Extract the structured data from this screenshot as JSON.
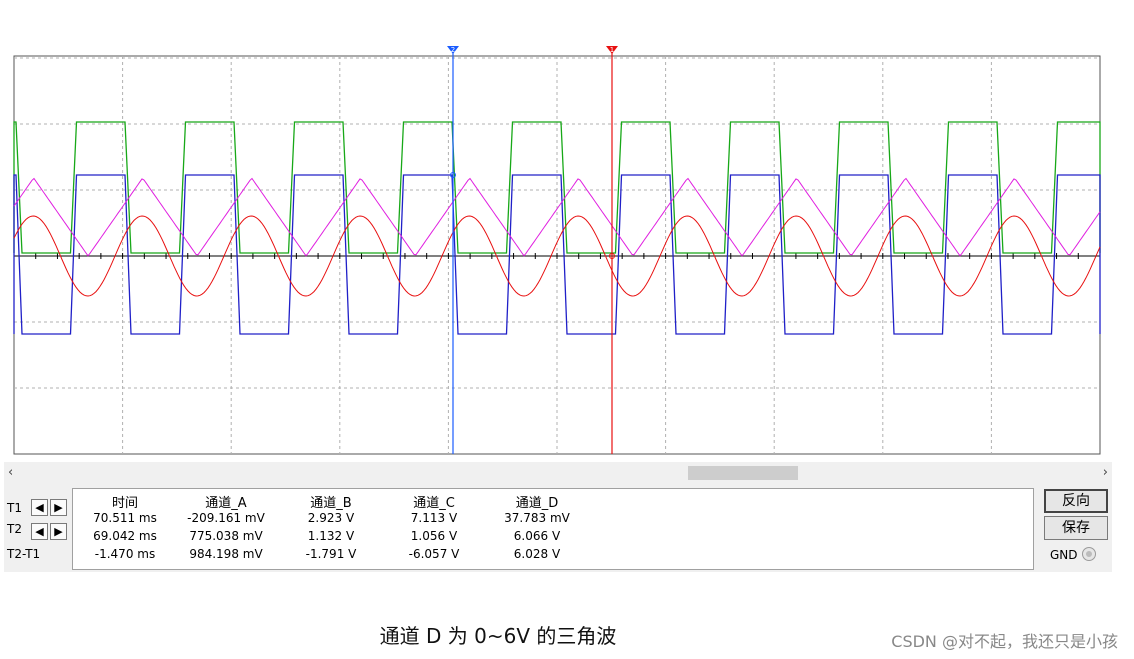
{
  "scope": {
    "trace_colors": {
      "A": "#e81010",
      "B": "#2020c8",
      "C": "#18a818",
      "D": "#e020e0"
    },
    "cursor_colors": {
      "T1": "#e81010",
      "T2": "#1a5cff"
    },
    "cursor_markers": {
      "T1": "1",
      "T2": "2"
    }
  },
  "scrollbar": {
    "left_arrow": "‹",
    "right_arrow": "›"
  },
  "panel": {
    "rows": {
      "t1": "T1",
      "t2": "T2",
      "diff": "T2-T1"
    },
    "headers": [
      "时间",
      "通道_A",
      "通道_B",
      "通道_C",
      "通道_D"
    ],
    "values": [
      [
        "70.511 ms",
        "-209.161 mV",
        "2.923 V",
        "7.113 V",
        "37.783 mV"
      ],
      [
        "69.042 ms",
        "775.038 mV",
        "1.132 V",
        "1.056 V",
        "6.066 V"
      ],
      [
        "-1.470 ms",
        "984.198 mV",
        "-1.791 V",
        "-6.057 V",
        "6.028 V"
      ]
    ],
    "reverse_label": "反向",
    "save_label": "保存",
    "gnd_label": "GND"
  },
  "caption": "通道 D 为 0~6V 的三角波",
  "watermark": "CSDN @对不起，我还只是小孩"
}
